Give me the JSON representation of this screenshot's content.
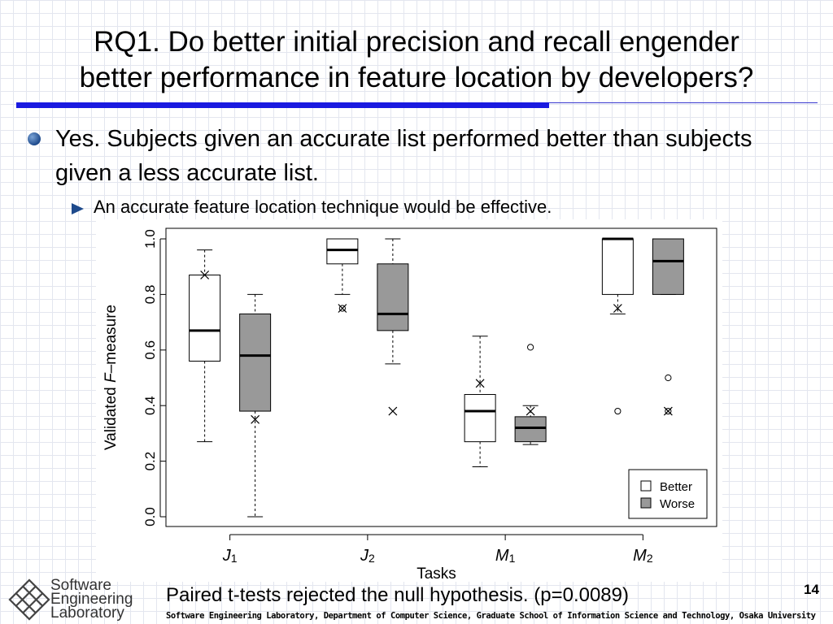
{
  "slide": {
    "title_line1": "RQ1. Do better initial precision and recall engender",
    "title_line2": "better performance in feature location by developers?",
    "bullet_main": "Yes.  Subjects given an accurate list performed better than subjects given a less accurate list.",
    "bullet_sub": "An accurate feature location technique would be effective.",
    "note": "Paired t-tests rejected the null hypothesis.  (p=0.0089)",
    "page_number": "14",
    "footer": "Software Engineering Laboratory, Department of Computer Science, Graduate School of Information Science and Technology, Osaka University",
    "logo": {
      "line1": "Software",
      "line2": "Engineering",
      "line3": "Laboratory"
    }
  },
  "colors": {
    "accent_blue": "#1a1ae0",
    "bullet_blue": "#1e4a8c",
    "better_fill": "#ffffff",
    "worse_fill": "#999999"
  },
  "chart_data": {
    "type": "boxplot",
    "xlabel": "Tasks",
    "ylabel_prefix": "Validated ",
    "ylabel_italic": "F",
    "ylabel_suffix": "–measure",
    "ylim": [
      0.0,
      1.0
    ],
    "yticks": [
      "0.0",
      "0.2",
      "0.4",
      "0.6",
      "0.8",
      "1.0"
    ],
    "grid": false,
    "legend_position": "bottom-right",
    "categories": [
      {
        "main": "J",
        "sub": "1"
      },
      {
        "main": "J",
        "sub": "2"
      },
      {
        "main": "M",
        "sub": "1"
      },
      {
        "main": "M",
        "sub": "2"
      }
    ],
    "series": [
      {
        "name": "Better",
        "fill": "#ffffff",
        "boxes": [
          {
            "whisker_low": 0.27,
            "q1": 0.56,
            "median": 0.67,
            "q3": 0.87,
            "whisker_high": 0.96,
            "mean": 0.87,
            "outliers": []
          },
          {
            "whisker_low": 0.8,
            "q1": 0.91,
            "median": 0.96,
            "q3": 1.0,
            "whisker_high": 1.0,
            "mean": 0.75,
            "outliers": [
              0.75
            ]
          },
          {
            "whisker_low": 0.18,
            "q1": 0.27,
            "median": 0.38,
            "q3": 0.44,
            "whisker_high": 0.65,
            "mean": 0.48,
            "outliers": []
          },
          {
            "whisker_low": 0.73,
            "q1": 0.8,
            "median": 1.0,
            "q3": 1.0,
            "whisker_high": 1.0,
            "mean": 0.75,
            "outliers": [
              0.38
            ]
          }
        ]
      },
      {
        "name": "Worse",
        "fill": "#999999",
        "boxes": [
          {
            "whisker_low": 0.0,
            "q1": 0.38,
            "median": 0.58,
            "q3": 0.73,
            "whisker_high": 0.8,
            "mean": 0.35,
            "outliers": []
          },
          {
            "whisker_low": 0.55,
            "q1": 0.67,
            "median": 0.73,
            "q3": 0.91,
            "whisker_high": 1.0,
            "mean": 0.38,
            "outliers": []
          },
          {
            "whisker_low": 0.26,
            "q1": 0.27,
            "median": 0.32,
            "q3": 0.36,
            "whisker_high": 0.4,
            "mean": 0.38,
            "outliers": [
              0.61
            ]
          },
          {
            "whisker_low": 0.8,
            "q1": 0.8,
            "median": 0.92,
            "q3": 1.0,
            "whisker_high": 1.0,
            "mean": 0.38,
            "outliers": [
              0.5,
              0.38
            ]
          }
        ]
      }
    ]
  }
}
